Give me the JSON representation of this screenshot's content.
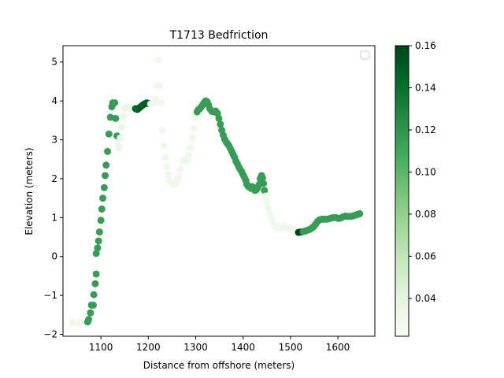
{
  "chart_data": {
    "type": "scatter",
    "title": "T1713 Bedfriction",
    "xlabel": "Distance from offshore (meters)",
    "ylabel": "Elevation (meters)",
    "xlim": [
      1020,
      1678
    ],
    "ylim": [
      -2.05,
      5.42
    ],
    "xticks": [
      1100,
      1200,
      1300,
      1400,
      1500,
      1600
    ],
    "xtick_labels": [
      "1100",
      "1200",
      "1300",
      "1400",
      "1500",
      "1600"
    ],
    "yticks": [
      -2,
      -1,
      0,
      1,
      2,
      3,
      4,
      5
    ],
    "ytick_labels": [
      "−2",
      "−1",
      "0",
      "1",
      "2",
      "3",
      "4",
      "5"
    ],
    "colormap": "Greens",
    "colorbar": {
      "vmin": 0.022,
      "vmax": 0.16,
      "ticks": [
        0.04,
        0.06,
        0.08,
        0.1,
        0.12,
        0.14,
        0.16
      ],
      "tick_labels": [
        "0.04",
        "0.06",
        "0.08",
        "0.10",
        "0.12",
        "0.14",
        "0.16"
      ]
    },
    "legend": {
      "position": "top-right",
      "entries": []
    },
    "points": [
      {
        "x": 1040,
        "y": -1.7,
        "c": 0.032
      },
      {
        "x": 1055,
        "y": -1.7,
        "c": 0.032
      },
      {
        "x": 1072,
        "y": -1.68,
        "c": 0.115
      },
      {
        "x": 1074,
        "y": -1.62,
        "c": 0.115
      },
      {
        "x": 1078,
        "y": -1.45,
        "c": 0.115
      },
      {
        "x": 1080,
        "y": -1.25,
        "c": 0.115
      },
      {
        "x": 1084,
        "y": -1.25,
        "c": 0.115
      },
      {
        "x": 1085,
        "y": -0.98,
        "c": 0.115
      },
      {
        "x": 1088,
        "y": -0.7,
        "c": 0.115
      },
      {
        "x": 1090,
        "y": -0.45,
        "c": 0.115
      },
      {
        "x": 1090,
        "y": 0.08,
        "c": 0.115
      },
      {
        "x": 1093,
        "y": 0.22,
        "c": 0.115
      },
      {
        "x": 1095,
        "y": 0.4,
        "c": 0.115
      },
      {
        "x": 1097,
        "y": 0.63,
        "c": 0.115
      },
      {
        "x": 1100,
        "y": 0.93,
        "c": 0.115
      },
      {
        "x": 1102,
        "y": 1.22,
        "c": 0.115
      },
      {
        "x": 1104,
        "y": 1.5,
        "c": 0.115
      },
      {
        "x": 1107,
        "y": 1.77,
        "c": 0.115
      },
      {
        "x": 1109,
        "y": 2.08,
        "c": 0.115
      },
      {
        "x": 1111,
        "y": 2.35,
        "c": 0.115
      },
      {
        "x": 1114,
        "y": 2.7,
        "c": 0.115
      },
      {
        "x": 1117,
        "y": 3.15,
        "c": 0.115
      },
      {
        "x": 1120,
        "y": 3.58,
        "c": 0.115
      },
      {
        "x": 1123,
        "y": 3.85,
        "c": 0.115
      },
      {
        "x": 1125,
        "y": 3.95,
        "c": 0.115
      },
      {
        "x": 1129,
        "y": 3.95,
        "c": 0.115
      },
      {
        "x": 1131,
        "y": 3.55,
        "c": 0.115
      },
      {
        "x": 1134,
        "y": 3.1,
        "c": 0.115
      },
      {
        "x": 1136,
        "y": 2.85,
        "c": 0.034
      },
      {
        "x": 1138,
        "y": 2.78,
        "c": 0.034
      },
      {
        "x": 1141,
        "y": 3.05,
        "c": 0.034
      },
      {
        "x": 1143,
        "y": 3.32,
        "c": 0.034
      },
      {
        "x": 1147,
        "y": 3.6,
        "c": 0.034
      },
      {
        "x": 1150,
        "y": 3.8,
        "c": 0.034
      },
      {
        "x": 1156,
        "y": 3.85,
        "c": 0.034
      },
      {
        "x": 1162,
        "y": 3.82,
        "c": 0.034
      },
      {
        "x": 1168,
        "y": 3.82,
        "c": 0.034
      },
      {
        "x": 1173,
        "y": 3.8,
        "c": 0.145
      },
      {
        "x": 1177,
        "y": 3.78,
        "c": 0.145
      },
      {
        "x": 1181,
        "y": 3.82,
        "c": 0.15
      },
      {
        "x": 1185,
        "y": 3.86,
        "c": 0.15
      },
      {
        "x": 1189,
        "y": 3.9,
        "c": 0.15
      },
      {
        "x": 1193,
        "y": 3.93,
        "c": 0.15
      },
      {
        "x": 1197,
        "y": 3.95,
        "c": 0.15
      },
      {
        "x": 1201,
        "y": 3.93,
        "c": 0.15
      },
      {
        "x": 1205,
        "y": 3.92,
        "c": 0.03
      },
      {
        "x": 1210,
        "y": 3.95,
        "c": 0.03
      },
      {
        "x": 1214,
        "y": 4.05,
        "c": 0.03
      },
      {
        "x": 1218,
        "y": 4.4,
        "c": 0.03
      },
      {
        "x": 1221,
        "y": 5.05,
        "c": 0.03
      },
      {
        "x": 1224,
        "y": 4.38,
        "c": 0.03
      },
      {
        "x": 1227,
        "y": 3.95,
        "c": 0.03
      },
      {
        "x": 1230,
        "y": 3.25,
        "c": 0.03
      },
      {
        "x": 1233,
        "y": 2.85,
        "c": 0.03
      },
      {
        "x": 1236,
        "y": 2.55,
        "c": 0.03
      },
      {
        "x": 1239,
        "y": 2.3,
        "c": 0.03
      },
      {
        "x": 1242,
        "y": 2.1,
        "c": 0.03
      },
      {
        "x": 1245,
        "y": 1.96,
        "c": 0.03
      },
      {
        "x": 1248,
        "y": 1.89,
        "c": 0.03
      },
      {
        "x": 1252,
        "y": 1.86,
        "c": 0.03
      },
      {
        "x": 1256,
        "y": 1.87,
        "c": 0.03
      },
      {
        "x": 1260,
        "y": 1.93,
        "c": 0.03
      },
      {
        "x": 1264,
        "y": 2.05,
        "c": 0.03
      },
      {
        "x": 1268,
        "y": 2.25,
        "c": 0.03
      },
      {
        "x": 1272,
        "y": 2.45,
        "c": 0.03
      },
      {
        "x": 1277,
        "y": 2.48,
        "c": 0.03
      },
      {
        "x": 1281,
        "y": 2.48,
        "c": 0.03
      },
      {
        "x": 1285,
        "y": 2.6,
        "c": 0.03
      },
      {
        "x": 1289,
        "y": 2.8,
        "c": 0.03
      },
      {
        "x": 1293,
        "y": 3.05,
        "c": 0.03
      },
      {
        "x": 1296,
        "y": 3.3,
        "c": 0.03
      },
      {
        "x": 1299,
        "y": 3.6,
        "c": 0.03
      },
      {
        "x": 1303,
        "y": 3.72,
        "c": 0.115
      },
      {
        "x": 1306,
        "y": 3.78,
        "c": 0.115
      },
      {
        "x": 1309,
        "y": 3.8,
        "c": 0.115
      },
      {
        "x": 1312,
        "y": 3.85,
        "c": 0.115
      },
      {
        "x": 1315,
        "y": 3.9,
        "c": 0.115
      },
      {
        "x": 1318,
        "y": 3.96,
        "c": 0.115
      },
      {
        "x": 1321,
        "y": 4.0,
        "c": 0.115
      },
      {
        "x": 1324,
        "y": 3.98,
        "c": 0.115
      },
      {
        "x": 1327,
        "y": 3.9,
        "c": 0.115
      },
      {
        "x": 1330,
        "y": 3.8,
        "c": 0.115
      },
      {
        "x": 1334,
        "y": 3.73,
        "c": 0.115
      },
      {
        "x": 1338,
        "y": 3.72,
        "c": 0.115
      },
      {
        "x": 1342,
        "y": 3.74,
        "c": 0.115
      },
      {
        "x": 1346,
        "y": 3.68,
        "c": 0.115
      },
      {
        "x": 1349,
        "y": 3.55,
        "c": 0.115
      },
      {
        "x": 1352,
        "y": 3.4,
        "c": 0.115
      },
      {
        "x": 1355,
        "y": 3.25,
        "c": 0.115
      },
      {
        "x": 1358,
        "y": 3.12,
        "c": 0.115
      },
      {
        "x": 1361,
        "y": 3.02,
        "c": 0.115
      },
      {
        "x": 1364,
        "y": 2.95,
        "c": 0.115
      },
      {
        "x": 1367,
        "y": 2.9,
        "c": 0.115
      },
      {
        "x": 1370,
        "y": 2.85,
        "c": 0.115
      },
      {
        "x": 1373,
        "y": 2.78,
        "c": 0.115
      },
      {
        "x": 1376,
        "y": 2.7,
        "c": 0.115
      },
      {
        "x": 1379,
        "y": 2.62,
        "c": 0.115
      },
      {
        "x": 1382,
        "y": 2.55,
        "c": 0.115
      },
      {
        "x": 1385,
        "y": 2.45,
        "c": 0.115
      },
      {
        "x": 1388,
        "y": 2.38,
        "c": 0.115
      },
      {
        "x": 1391,
        "y": 2.3,
        "c": 0.115
      },
      {
        "x": 1394,
        "y": 2.24,
        "c": 0.115
      },
      {
        "x": 1397,
        "y": 2.18,
        "c": 0.115
      },
      {
        "x": 1400,
        "y": 2.1,
        "c": 0.115
      },
      {
        "x": 1403,
        "y": 2.03,
        "c": 0.115
      },
      {
        "x": 1406,
        "y": 1.95,
        "c": 0.115
      },
      {
        "x": 1408,
        "y": 1.85,
        "c": 0.115
      },
      {
        "x": 1411,
        "y": 1.8,
        "c": 0.115
      },
      {
        "x": 1414,
        "y": 1.78,
        "c": 0.115
      },
      {
        "x": 1417,
        "y": 1.75,
        "c": 0.115
      },
      {
        "x": 1419,
        "y": 1.8,
        "c": 0.115
      },
      {
        "x": 1422,
        "y": 1.76,
        "c": 0.115
      },
      {
        "x": 1425,
        "y": 1.7,
        "c": 0.115
      },
      {
        "x": 1428,
        "y": 1.72,
        "c": 0.115
      },
      {
        "x": 1431,
        "y": 1.78,
        "c": 0.115
      },
      {
        "x": 1434,
        "y": 1.85,
        "c": 0.115
      },
      {
        "x": 1436,
        "y": 2.0,
        "c": 0.115
      },
      {
        "x": 1439,
        "y": 2.08,
        "c": 0.115
      },
      {
        "x": 1441,
        "y": 2.02,
        "c": 0.115
      },
      {
        "x": 1443,
        "y": 1.88,
        "c": 0.115
      },
      {
        "x": 1445,
        "y": 1.7,
        "c": 0.115
      },
      {
        "x": 1447,
        "y": 1.55,
        "c": 0.03
      },
      {
        "x": 1450,
        "y": 1.4,
        "c": 0.03
      },
      {
        "x": 1453,
        "y": 1.25,
        "c": 0.03
      },
      {
        "x": 1456,
        "y": 1.1,
        "c": 0.03
      },
      {
        "x": 1460,
        "y": 0.98,
        "c": 0.03
      },
      {
        "x": 1464,
        "y": 0.88,
        "c": 0.03
      },
      {
        "x": 1468,
        "y": 0.8,
        "c": 0.03
      },
      {
        "x": 1472,
        "y": 0.73,
        "c": 0.03
      },
      {
        "x": 1477,
        "y": 0.72,
        "c": 0.03
      },
      {
        "x": 1482,
        "y": 0.75,
        "c": 0.03
      },
      {
        "x": 1487,
        "y": 0.78,
        "c": 0.03
      },
      {
        "x": 1492,
        "y": 0.75,
        "c": 0.03
      },
      {
        "x": 1497,
        "y": 0.72,
        "c": 0.03
      },
      {
        "x": 1502,
        "y": 0.72,
        "c": 0.03
      },
      {
        "x": 1507,
        "y": 0.7,
        "c": 0.03
      },
      {
        "x": 1512,
        "y": 0.66,
        "c": 0.03
      },
      {
        "x": 1517,
        "y": 0.62,
        "c": 0.16
      },
      {
        "x": 1522,
        "y": 0.63,
        "c": 0.16
      },
      {
        "x": 1527,
        "y": 0.64,
        "c": 0.115
      },
      {
        "x": 1532,
        "y": 0.66,
        "c": 0.115
      },
      {
        "x": 1537,
        "y": 0.68,
        "c": 0.115
      },
      {
        "x": 1541,
        "y": 0.7,
        "c": 0.115
      },
      {
        "x": 1545,
        "y": 0.73,
        "c": 0.115
      },
      {
        "x": 1549,
        "y": 0.77,
        "c": 0.115
      },
      {
        "x": 1553,
        "y": 0.83,
        "c": 0.115
      },
      {
        "x": 1557,
        "y": 0.9,
        "c": 0.115
      },
      {
        "x": 1561,
        "y": 0.94,
        "c": 0.115
      },
      {
        "x": 1566,
        "y": 0.96,
        "c": 0.115
      },
      {
        "x": 1571,
        "y": 0.96,
        "c": 0.115
      },
      {
        "x": 1576,
        "y": 0.96,
        "c": 0.115
      },
      {
        "x": 1581,
        "y": 0.97,
        "c": 0.115
      },
      {
        "x": 1586,
        "y": 0.99,
        "c": 0.115
      },
      {
        "x": 1591,
        "y": 1.0,
        "c": 0.115
      },
      {
        "x": 1596,
        "y": 1.0,
        "c": 0.115
      },
      {
        "x": 1601,
        "y": 0.98,
        "c": 0.115
      },
      {
        "x": 1606,
        "y": 0.99,
        "c": 0.115
      },
      {
        "x": 1611,
        "y": 1.02,
        "c": 0.115
      },
      {
        "x": 1616,
        "y": 1.04,
        "c": 0.115
      },
      {
        "x": 1621,
        "y": 1.03,
        "c": 0.115
      },
      {
        "x": 1626,
        "y": 1.03,
        "c": 0.115
      },
      {
        "x": 1631,
        "y": 1.04,
        "c": 0.115
      },
      {
        "x": 1636,
        "y": 1.06,
        "c": 0.115
      },
      {
        "x": 1641,
        "y": 1.08,
        "c": 0.115
      },
      {
        "x": 1646,
        "y": 1.1,
        "c": 0.115
      }
    ]
  }
}
